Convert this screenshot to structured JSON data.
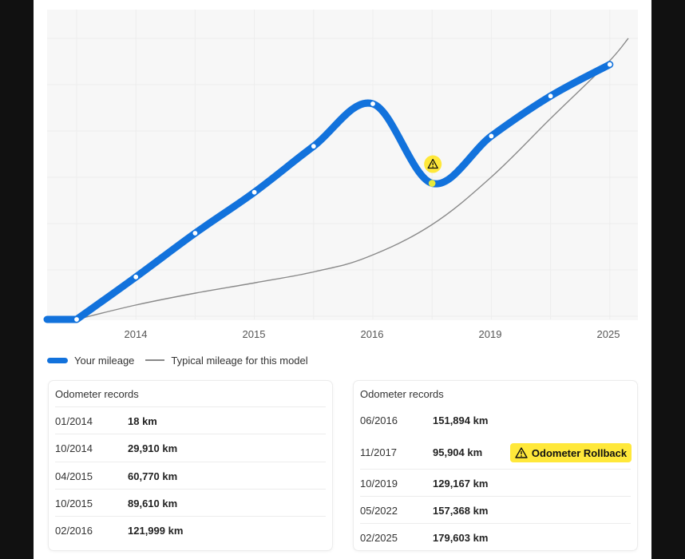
{
  "chart_data": {
    "type": "line",
    "x_ticks": [
      "2014",
      "2015",
      "2016",
      "2019",
      "2025"
    ],
    "series": [
      {
        "name": "Your mileage",
        "color": "#1272dc",
        "points": [
          {
            "date": "01/2014",
            "km": 18
          },
          {
            "date": "10/2014",
            "km": 29910
          },
          {
            "date": "04/2015",
            "km": 60770
          },
          {
            "date": "10/2015",
            "km": 89610
          },
          {
            "date": "02/2016",
            "km": 121999
          },
          {
            "date": "06/2016",
            "km": 151894
          },
          {
            "date": "11/2017",
            "km": 95904,
            "flag": "rollback"
          },
          {
            "date": "10/2019",
            "km": 129167
          },
          {
            "date": "05/2022",
            "km": 157368
          },
          {
            "date": "02/2025",
            "km": 179603
          }
        ]
      },
      {
        "name": "Typical mileage for this model",
        "color": "#8a8a8a"
      }
    ],
    "grid": true
  },
  "legend": {
    "main_label": "Your mileage",
    "typical_label": "Typical mileage for this model"
  },
  "records_left": {
    "title": "Odometer records",
    "rows": [
      {
        "date": "01/2014",
        "value": "18 km"
      },
      {
        "date": "10/2014",
        "value": "29,910 km"
      },
      {
        "date": "04/2015",
        "value": "60,770 km"
      },
      {
        "date": "10/2015",
        "value": "89,610 km"
      },
      {
        "date": "02/2016",
        "value": "121,999 km"
      }
    ]
  },
  "records_right": {
    "title": "Odometer records",
    "rows": [
      {
        "date": "06/2016",
        "value": "151,894 km"
      },
      {
        "date": "11/2017",
        "value": "95,904 km"
      },
      {
        "date": "10/2019",
        "value": "129,167 km"
      },
      {
        "date": "05/2022",
        "value": "157,368 km"
      },
      {
        "date": "02/2025",
        "value": "179,603 km"
      }
    ],
    "badge": "Odometer Rollback"
  },
  "colors": {
    "accent": "#1272dc",
    "warning": "#ffe83a"
  },
  "icons": {
    "warning": "warning-triangle-icon"
  }
}
